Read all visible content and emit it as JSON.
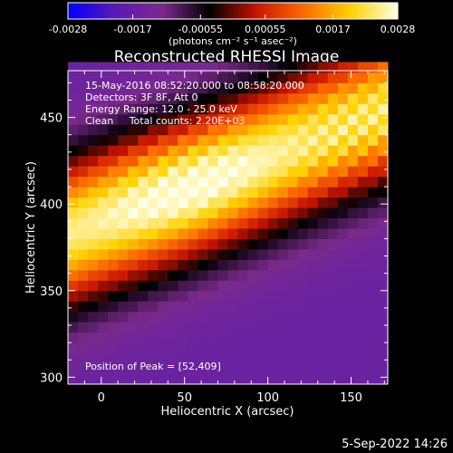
{
  "chart_data": {
    "type": "heatmap",
    "title": "Reconstructed RHESSI Image",
    "xlabel": "Heliocentric X (arcsec)",
    "ylabel": "Heliocentric Y (arcsec)",
    "xlim": [
      -20,
      172
    ],
    "ylim": [
      296,
      477
    ],
    "x_ticks": [
      0,
      50,
      100,
      150
    ],
    "y_ticks": [
      300,
      350,
      400,
      450
    ],
    "colorbar": {
      "min": -0.0028,
      "max": 0.0028,
      "tick_values": [
        -0.0028,
        -0.0017,
        -0.00055,
        0.00055,
        0.0017,
        0.0028
      ],
      "tick_labels": [
        "-0.0028",
        "-0.0017",
        "-0.00055",
        "0.00055",
        "0.0017",
        "0.0028"
      ],
      "unit": "(photons cm⁻² s⁻¹ asec⁻²)"
    },
    "annotations": [
      "15-May-2016 08:52:20.000 to 08:58:20.000",
      "Detectors: 3F 8F, Att 0",
      "Energy Range: 12.0 - 25.0 keV",
      "Clean     Total counts: 2.20E+03"
    ],
    "peak_label": "Position of Peak = [52,409]",
    "peak": [
      52,
      409
    ],
    "feature": {
      "description_hidden": false,
      "band_axis_points": [
        [
          -20,
          383
        ],
        [
          52,
          409
        ],
        [
          172,
          455
        ]
      ],
      "band_half_width_arcsec": 30,
      "peak_value": 0.0028,
      "background_value": -0.0016
    }
  },
  "footer": {
    "date": "5-Sep-2022 14:26"
  },
  "colors": {
    "background": "#000000",
    "axes": "#ffffff",
    "colormap": [
      "#0000ff",
      "#5a1ab4",
      "#7a2a8c",
      "#000000",
      "#c81400",
      "#ff6a00",
      "#ffd200",
      "#ffffe6"
    ]
  }
}
